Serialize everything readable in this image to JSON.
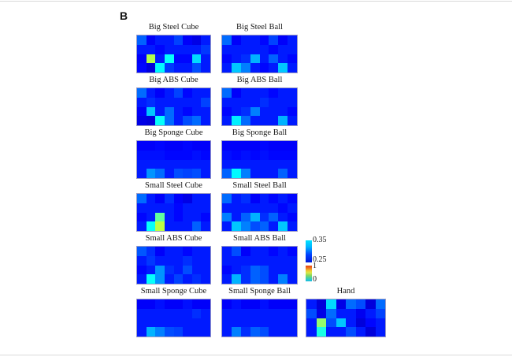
{
  "panel_label": "B",
  "colorbar": {
    "top": {
      "max_label": "0.35",
      "min_label": "0.25"
    },
    "bottom": {
      "max_label": "1",
      "min_label": "0"
    }
  },
  "chart_data": [
    {
      "type": "heatmap",
      "title": "Big Steel Cube",
      "rows": 4,
      "cols": 8,
      "value_range": [
        0,
        1
      ],
      "values": [
        [
          0.22,
          0.12,
          0.15,
          0.15,
          0.19,
          0.12,
          0.1,
          0.15
        ],
        [
          0.15,
          0.15,
          0.13,
          0.15,
          0.15,
          0.15,
          0.15,
          0.18
        ],
        [
          0.12,
          0.55,
          0.15,
          0.38,
          0.13,
          0.13,
          0.34,
          0.15
        ],
        [
          0.13,
          0.09,
          0.37,
          0.18,
          0.15,
          0.15,
          0.2,
          0.15
        ]
      ]
    },
    {
      "type": "heatmap",
      "title": "Big Steel Ball",
      "rows": 4,
      "cols": 8,
      "value_range": [
        0,
        1
      ],
      "values": [
        [
          0.23,
          0.12,
          0.15,
          0.15,
          0.13,
          0.19,
          0.12,
          0.15
        ],
        [
          0.15,
          0.15,
          0.15,
          0.15,
          0.15,
          0.13,
          0.15,
          0.15
        ],
        [
          0.13,
          0.15,
          0.17,
          0.3,
          0.15,
          0.22,
          0.15,
          0.13
        ],
        [
          0.15,
          0.32,
          0.25,
          0.15,
          0.13,
          0.15,
          0.32,
          0.15
        ]
      ]
    },
    {
      "type": "heatmap",
      "title": "Big ABS Cube",
      "rows": 4,
      "cols": 8,
      "value_range": [
        0,
        1
      ],
      "values": [
        [
          0.23,
          0.15,
          0.12,
          0.15,
          0.19,
          0.13,
          0.15,
          0.15
        ],
        [
          0.15,
          0.17,
          0.15,
          0.15,
          0.15,
          0.15,
          0.15,
          0.19
        ],
        [
          0.12,
          0.32,
          0.15,
          0.23,
          0.15,
          0.13,
          0.15,
          0.15
        ],
        [
          0.1,
          0.09,
          0.38,
          0.23,
          0.15,
          0.2,
          0.23,
          0.15
        ]
      ]
    },
    {
      "type": "heatmap",
      "title": "Big ABS Ball",
      "rows": 4,
      "cols": 8,
      "value_range": [
        0,
        1
      ],
      "values": [
        [
          0.23,
          0.12,
          0.15,
          0.15,
          0.15,
          0.13,
          0.15,
          0.15
        ],
        [
          0.15,
          0.15,
          0.15,
          0.15,
          0.17,
          0.15,
          0.15,
          0.15
        ],
        [
          0.13,
          0.15,
          0.17,
          0.25,
          0.15,
          0.15,
          0.15,
          0.13
        ],
        [
          0.15,
          0.36,
          0.23,
          0.15,
          0.15,
          0.15,
          0.3,
          0.15
        ]
      ]
    },
    {
      "type": "heatmap",
      "title": "Big Sponge Cube",
      "rows": 4,
      "cols": 8,
      "value_range": [
        0,
        1
      ],
      "values": [
        [
          0.12,
          0.12,
          0.13,
          0.12,
          0.12,
          0.13,
          0.12,
          0.12
        ],
        [
          0.14,
          0.14,
          0.14,
          0.13,
          0.13,
          0.13,
          0.14,
          0.13
        ],
        [
          0.15,
          0.15,
          0.15,
          0.15,
          0.15,
          0.15,
          0.15,
          0.15
        ],
        [
          0.15,
          0.27,
          0.23,
          0.15,
          0.2,
          0.19,
          0.2,
          0.15
        ]
      ]
    },
    {
      "type": "heatmap",
      "title": "Big Sponge Ball",
      "rows": 4,
      "cols": 8,
      "value_range": [
        0,
        1
      ],
      "values": [
        [
          0.12,
          0.12,
          0.12,
          0.12,
          0.13,
          0.12,
          0.12,
          0.12
        ],
        [
          0.14,
          0.13,
          0.14,
          0.13,
          0.14,
          0.13,
          0.13,
          0.13
        ],
        [
          0.15,
          0.15,
          0.15,
          0.15,
          0.15,
          0.15,
          0.15,
          0.15
        ],
        [
          0.22,
          0.37,
          0.25,
          0.15,
          0.15,
          0.15,
          0.22,
          0.15
        ]
      ]
    },
    {
      "type": "heatmap",
      "title": "Small Steel Cube",
      "rows": 4,
      "cols": 8,
      "value_range": [
        0,
        1
      ],
      "values": [
        [
          0.23,
          0.15,
          0.12,
          0.17,
          0.12,
          0.1,
          0.15,
          0.15
        ],
        [
          0.15,
          0.15,
          0.15,
          0.15,
          0.13,
          0.15,
          0.15,
          0.15
        ],
        [
          0.13,
          0.15,
          0.47,
          0.15,
          0.13,
          0.15,
          0.15,
          0.13
        ],
        [
          0.15,
          0.38,
          0.56,
          0.15,
          0.15,
          0.15,
          0.22,
          0.15
        ]
      ]
    },
    {
      "type": "heatmap",
      "title": "Small Steel Ball",
      "rows": 4,
      "cols": 8,
      "value_range": [
        0,
        1
      ],
      "values": [
        [
          0.23,
          0.15,
          0.17,
          0.12,
          0.15,
          0.13,
          0.15,
          0.13
        ],
        [
          0.15,
          0.15,
          0.15,
          0.15,
          0.15,
          0.15,
          0.13,
          0.15
        ],
        [
          0.25,
          0.15,
          0.22,
          0.3,
          0.17,
          0.22,
          0.15,
          0.13
        ],
        [
          0.15,
          0.32,
          0.25,
          0.2,
          0.22,
          0.15,
          0.32,
          0.15
        ]
      ]
    },
    {
      "type": "heatmap",
      "title": "Small ABS Cube",
      "rows": 4,
      "cols": 8,
      "value_range": [
        0,
        1
      ],
      "values": [
        [
          0.21,
          0.17,
          0.12,
          0.15,
          0.15,
          0.13,
          0.15,
          0.15
        ],
        [
          0.15,
          0.18,
          0.15,
          0.15,
          0.15,
          0.17,
          0.15,
          0.15
        ],
        [
          0.13,
          0.15,
          0.27,
          0.17,
          0.15,
          0.2,
          0.15,
          0.15
        ],
        [
          0.15,
          0.38,
          0.27,
          0.15,
          0.19,
          0.15,
          0.17,
          0.15
        ]
      ]
    },
    {
      "type": "heatmap",
      "title": "Small ABS Ball",
      "rows": 4,
      "cols": 8,
      "value_range": [
        0,
        1
      ],
      "values": [
        [
          0.15,
          0.2,
          0.12,
          0.15,
          0.15,
          0.13,
          0.15,
          0.13
        ],
        [
          0.15,
          0.15,
          0.15,
          0.15,
          0.15,
          0.15,
          0.15,
          0.15
        ],
        [
          0.13,
          0.15,
          0.17,
          0.22,
          0.2,
          0.15,
          0.15,
          0.15
        ],
        [
          0.15,
          0.3,
          0.17,
          0.22,
          0.2,
          0.15,
          0.25,
          0.15
        ]
      ]
    },
    {
      "type": "heatmap",
      "title": "Small Sponge Cube",
      "rows": 4,
      "cols": 8,
      "value_range": [
        0,
        1
      ],
      "values": [
        [
          0.12,
          0.12,
          0.14,
          0.12,
          0.12,
          0.14,
          0.12,
          0.12
        ],
        [
          0.15,
          0.15,
          0.15,
          0.15,
          0.15,
          0.15,
          0.17,
          0.15
        ],
        [
          0.15,
          0.15,
          0.15,
          0.15,
          0.15,
          0.15,
          0.15,
          0.15
        ],
        [
          0.15,
          0.3,
          0.25,
          0.2,
          0.19,
          0.15,
          0.15,
          0.15
        ]
      ]
    },
    {
      "type": "heatmap",
      "title": "Small Sponge Ball",
      "rows": 4,
      "cols": 8,
      "value_range": [
        0,
        1
      ],
      "values": [
        [
          0.12,
          0.14,
          0.12,
          0.12,
          0.14,
          0.12,
          0.12,
          0.12
        ],
        [
          0.15,
          0.15,
          0.15,
          0.15,
          0.15,
          0.15,
          0.15,
          0.15
        ],
        [
          0.15,
          0.15,
          0.15,
          0.15,
          0.15,
          0.15,
          0.15,
          0.15
        ],
        [
          0.15,
          0.25,
          0.17,
          0.22,
          0.2,
          0.15,
          0.15,
          0.15
        ]
      ]
    },
    {
      "type": "heatmap",
      "title": "Hand",
      "rows": 4,
      "cols": 8,
      "value_range": [
        0,
        1
      ],
      "values": [
        [
          0.15,
          0.09,
          0.34,
          0.1,
          0.23,
          0.2,
          0.09,
          0.23
        ],
        [
          0.2,
          0.1,
          0.23,
          0.15,
          0.15,
          0.11,
          0.15,
          0.19
        ],
        [
          0.15,
          0.52,
          0.2,
          0.32,
          0.15,
          0.09,
          0.13,
          0.15
        ],
        [
          0.15,
          0.4,
          0.15,
          0.15,
          0.2,
          0.15,
          0.09,
          0.15
        ]
      ]
    }
  ]
}
